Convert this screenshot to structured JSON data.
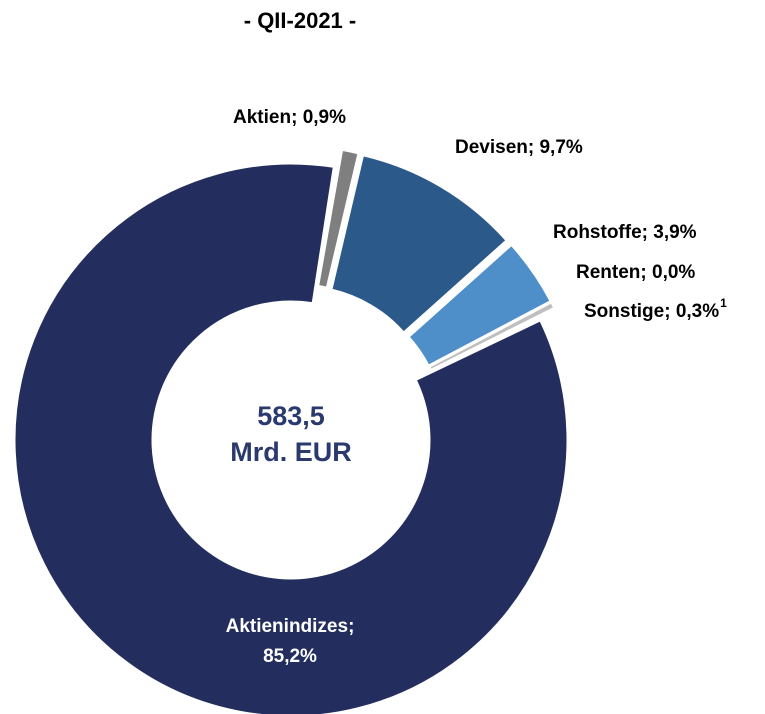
{
  "chart_data": {
    "type": "donut",
    "title": "- QII-2021 -",
    "center_label": [
      "583,5",
      "Mrd. EUR"
    ],
    "categories": [
      "Aktien",
      "Devisen",
      "Rohstoffe",
      "Renten",
      "Sonstige",
      "Aktienindizes"
    ],
    "values": [
      0.9,
      9.7,
      3.9,
      0.0,
      0.3,
      85.2
    ],
    "value_labels": [
      "Aktien; 0,9%",
      "Devisen; 9,7%",
      "Rohstoffe; 3,9%",
      "Renten; 0,0%",
      "Sonstige; 0,3%",
      "Aktienindizes; 85,2%"
    ],
    "label_superscripts": [
      null,
      null,
      null,
      null,
      "1",
      null
    ],
    "colors": [
      "#7f7f7f",
      "#2b5a8a",
      "#4f8fc9",
      "#3a6ea5",
      "#bfbfbf",
      "#232e5e"
    ]
  }
}
